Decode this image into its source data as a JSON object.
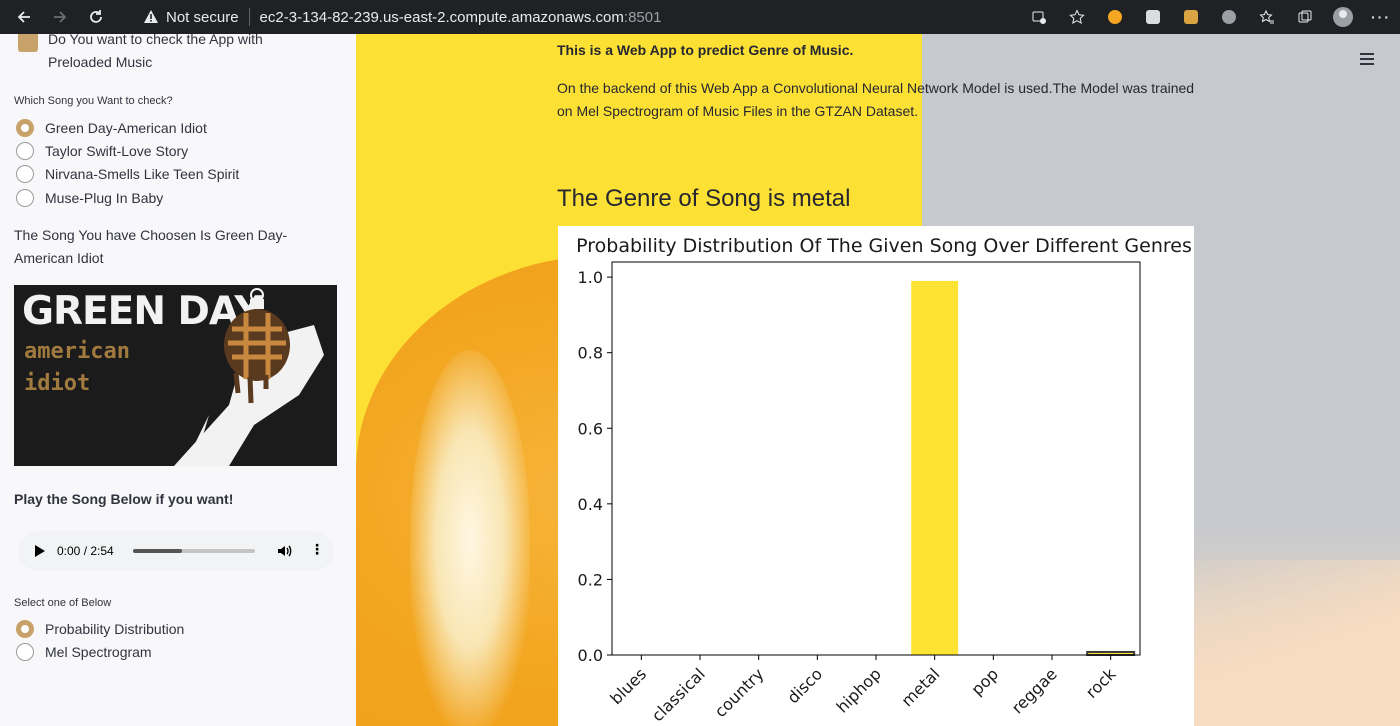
{
  "browser": {
    "not_secure": "Not secure",
    "url_host": "ec2-3-134-82-239.us-east-2.compute.amazonaws.com",
    "url_port": ":8501"
  },
  "sidebar": {
    "preload_checkbox_label": "Do You want to check the App with Preloaded Music",
    "preload_checked": true,
    "song_question": "Which Song you Want to check?",
    "songs": [
      {
        "label": "Green Day-American Idiot",
        "selected": true
      },
      {
        "label": "Taylor Swift-Love Story",
        "selected": false
      },
      {
        "label": "Nirvana-Smells Like Teen Spirit",
        "selected": false
      },
      {
        "label": "Muse-Plug In Baby",
        "selected": false
      }
    ],
    "chosen_text": "The Song You have Choosen Is Green Day-American Idiot",
    "album": {
      "title": "GREEN DAY",
      "line1": "american",
      "line2": "idiot"
    },
    "play_heading": "Play the Song Below if you want!",
    "audio": {
      "time": "0:00 / 2:54",
      "progress": 0.4
    },
    "select_label": "Select one of Below",
    "views": [
      {
        "label": "Probability Distribution",
        "selected": true
      },
      {
        "label": "Mel Spectrogram",
        "selected": false
      }
    ]
  },
  "main": {
    "intro_bold": "This is a Web App to predict Genre of Music.",
    "description": "On the backend of this Web App a Convolutional Neural Network Model is used.The Model was trained on Mel Spectrogram of Music Files in the GTZAN Dataset.",
    "genre_result": "The Genre of Song is metal"
  },
  "colors": {
    "accent": "#c9a16a",
    "bar": "#fde334",
    "bar_edge": "#3b3b3b"
  },
  "chart_data": {
    "type": "bar",
    "title": "Probability Distribution Of The Given Song Over Different Genres",
    "categories": [
      "blues",
      "classical",
      "country",
      "disco",
      "hiphop",
      "metal",
      "pop",
      "reggae",
      "rock"
    ],
    "values": [
      0.0,
      0.0,
      0.0,
      0.0,
      0.0,
      0.99,
      0.0,
      0.0,
      0.008
    ],
    "yticks": [
      "0.0",
      "0.2",
      "0.4",
      "0.6",
      "0.8",
      "1.0"
    ],
    "ylim": [
      0,
      1.04
    ],
    "grid": false
  }
}
